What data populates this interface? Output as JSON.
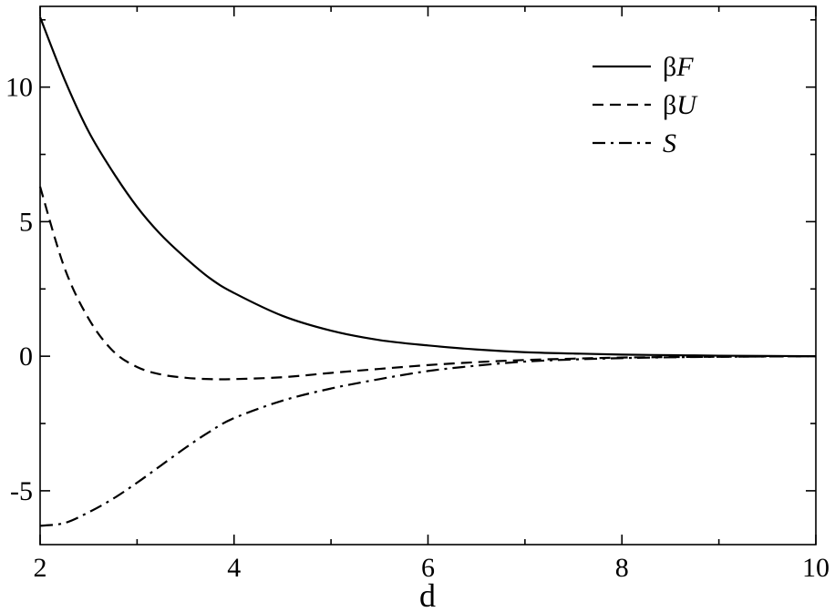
{
  "chart_data": {
    "type": "line",
    "xlabel": "d",
    "ylabel": "",
    "xlim": [
      2,
      10
    ],
    "ylim": [
      -7,
      13
    ],
    "x_ticks": [
      2,
      4,
      6,
      8,
      10
    ],
    "x_tick_labels": [
      "2",
      "4",
      "6",
      "8",
      "10"
    ],
    "y_ticks": [
      -5,
      0,
      5,
      10
    ],
    "y_tick_labels": [
      "-5",
      "0",
      "5",
      "10"
    ],
    "grid": false,
    "legend_position": "top-right",
    "x": [
      2.0,
      2.25,
      2.5,
      2.75,
      3.0,
      3.25,
      3.5,
      3.75,
      4.0,
      4.5,
      5.0,
      5.5,
      6.0,
      6.5,
      7.0,
      7.5,
      8.0,
      8.5,
      9.0,
      9.5,
      10.0
    ],
    "series": [
      {
        "name": "βF",
        "legend_prefix": "β",
        "legend_var": "F",
        "dash": "",
        "values": [
          12.6,
          10.3,
          8.35,
          6.85,
          5.55,
          4.5,
          3.65,
          2.9,
          2.35,
          1.5,
          0.95,
          0.6,
          0.4,
          0.25,
          0.15,
          0.1,
          0.06,
          0.04,
          0.02,
          0.01,
          0.0
        ]
      },
      {
        "name": "βU",
        "legend_prefix": "β",
        "legend_var": "U",
        "dash": "12,7",
        "values": [
          6.3,
          3.3,
          1.4,
          0.2,
          -0.4,
          -0.68,
          -0.8,
          -0.85,
          -0.85,
          -0.78,
          -0.62,
          -0.47,
          -0.33,
          -0.22,
          -0.14,
          -0.09,
          -0.05,
          -0.03,
          -0.02,
          -0.01,
          0.0
        ]
      },
      {
        "name": "S",
        "legend_prefix": "",
        "legend_var": "S",
        "dash": "14,6,3,6",
        "values": [
          -6.3,
          -6.2,
          -5.8,
          -5.3,
          -4.7,
          -4.05,
          -3.4,
          -2.8,
          -2.3,
          -1.65,
          -1.2,
          -0.85,
          -0.55,
          -0.35,
          -0.2,
          -0.12,
          -0.07,
          -0.04,
          -0.02,
          -0.01,
          0.0
        ]
      }
    ]
  }
}
